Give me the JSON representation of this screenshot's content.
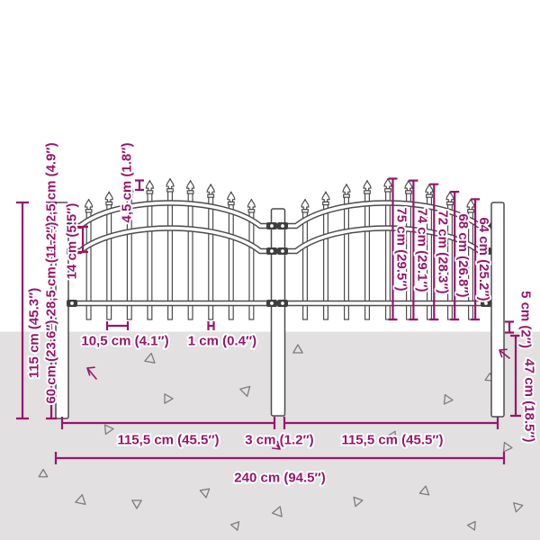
{
  "diagram": {
    "subject": "garden fence with spear top, front elevation with dimensions",
    "units": "cm and inches"
  },
  "colors": {
    "dimension": "#97156a",
    "ground": "#e2e0e0",
    "outline": "#4b4b4b"
  },
  "fence": {
    "panel_count": 2,
    "post_count": 3,
    "pickets_per_panel": 9,
    "picket_heights_cm": [
      64,
      68,
      72,
      74,
      75,
      74,
      72,
      68,
      64
    ]
  },
  "dims": {
    "total_height": "115 cm (45.3″)",
    "post_top_offset": "12,5 cm (4.9″)",
    "rail_gap": "14 cm (5.5″)",
    "mid_section": "28,5 cm (11.2″)",
    "below_rail": "60 cm (23.6″)",
    "spear_height": "4,5 cm (1.8″)",
    "picket_spacing": "10,5 cm (4.1″)",
    "picket_width": "1 cm (0.4″)",
    "picket_heights": [
      "75 cm (29.5″)",
      "74 cm (29.1″)",
      "72 cm (28.3″)",
      "68 cm (26.8″)",
      "64 cm (25.2″)"
    ],
    "ground_gap": "5 cm (2″)",
    "below_ground": "47 cm (18.5″)",
    "left_panel_width": "115,5 cm (45.5″)",
    "post_gap": "3 cm (1.2″)",
    "right_panel_width": "115,5 cm (45.5″)",
    "total_width": "240 cm (94.5″)"
  }
}
